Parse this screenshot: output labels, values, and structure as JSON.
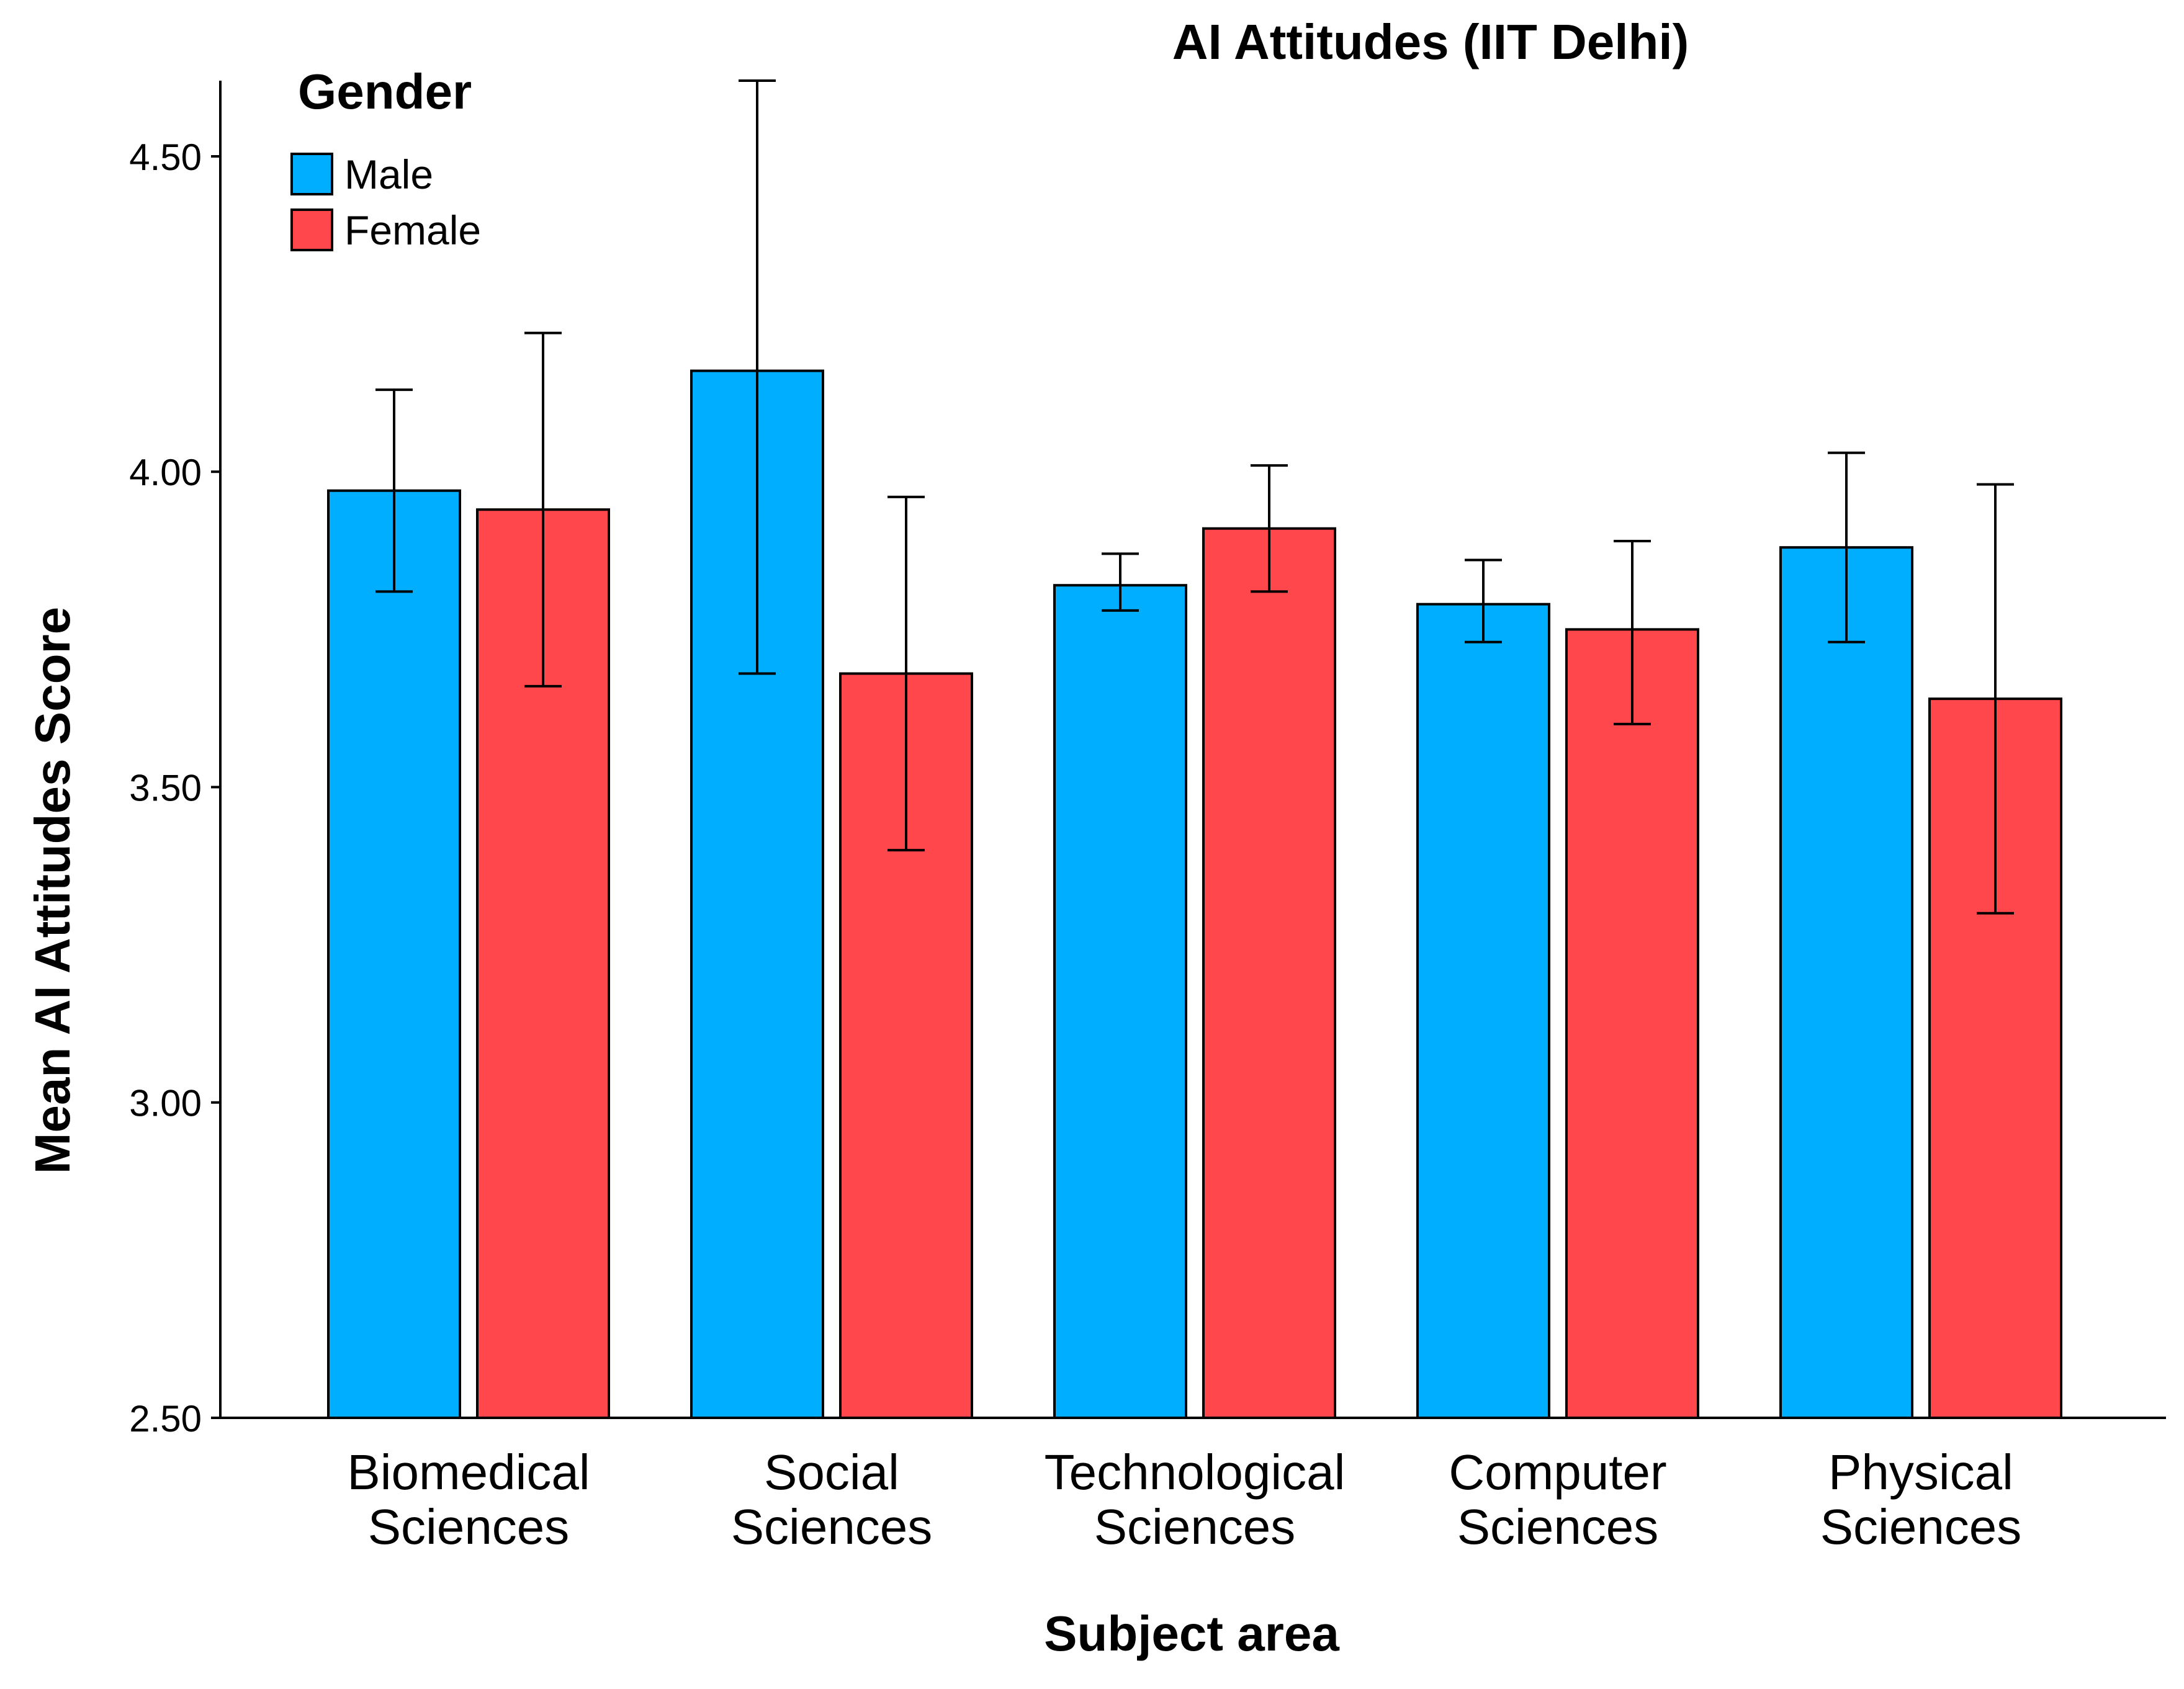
{
  "chart_data": {
    "type": "bar",
    "title": "AI Attitudes (IIT Delhi)",
    "xlabel": "Subject area",
    "ylabel": "Mean AI Attitudes Score",
    "ylim": [
      2.5,
      4.62
    ],
    "yticks": [
      2.5,
      3.0,
      3.5,
      4.0,
      4.5
    ],
    "ytick_labels": [
      "2.50",
      "3.00",
      "3.50",
      "4.00",
      "4.50"
    ],
    "categories": [
      [
        "Biomedical",
        "Sciences"
      ],
      [
        "Social",
        "Sciences"
      ],
      [
        "Technological",
        "Sciences"
      ],
      [
        "Computer",
        "Sciences"
      ],
      [
        "Physical",
        "Sciences"
      ]
    ],
    "legend": {
      "title": "Gender",
      "position": "top-left"
    },
    "series": [
      {
        "name": "Male",
        "color": "#00AEFF",
        "values": [
          3.97,
          4.16,
          3.82,
          3.79,
          3.88
        ],
        "error_low": [
          3.81,
          3.68,
          3.78,
          3.73,
          3.73
        ],
        "error_high": [
          4.13,
          4.62,
          3.87,
          3.86,
          4.03
        ]
      },
      {
        "name": "Female",
        "color": "#FF474C",
        "values": [
          3.94,
          3.68,
          3.91,
          3.75,
          3.64
        ],
        "error_low": [
          3.66,
          3.4,
          3.81,
          3.6,
          3.3
        ],
        "error_high": [
          4.22,
          3.96,
          4.01,
          3.89,
          3.98
        ]
      }
    ]
  }
}
